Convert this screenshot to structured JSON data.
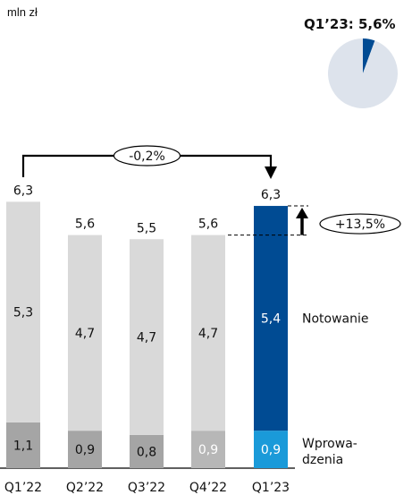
{
  "unit_label": "mln zł",
  "chart_data": [
    {
      "type": "bar",
      "stacked": true,
      "categories": [
        "Q1’22",
        "Q2’22",
        "Q3’22",
        "Q4’22",
        "Q1’23"
      ],
      "series": [
        {
          "name": "Wprowa-\ndzenia",
          "values": [
            1.1,
            0.9,
            0.8,
            0.9,
            0.9
          ],
          "labels": [
            "1,1",
            "0,9",
            "0,8",
            "0,9",
            "0,9"
          ]
        },
        {
          "name": "Notowanie",
          "values": [
            5.3,
            4.7,
            4.7,
            4.7,
            5.4
          ],
          "labels": [
            "5,3",
            "4,7",
            "4,7",
            "4,7",
            "5,4"
          ]
        }
      ],
      "totals": [
        6.3,
        5.6,
        5.5,
        5.6,
        6.3
      ],
      "total_labels": [
        "6,3",
        "5,6",
        "5,5",
        "5,6",
        "6,3"
      ],
      "colors": {
        "base_bottom": "#a5a5a5",
        "base_top": "#d9d9d9",
        "base_bottom_q4": "#b7b7b7",
        "highlight_bottom": "#1a9ad9",
        "highlight_top": "#004b93"
      },
      "annotations": {
        "yoy_change": "-0,2%",
        "qoq_change": "+13,5%"
      },
      "legend_placement": "right"
    },
    {
      "type": "pie",
      "title": "Q1’23: 5,6%",
      "values": [
        5.6,
        94.4
      ],
      "colors": [
        "#004b93",
        "#dde3ec"
      ]
    }
  ]
}
